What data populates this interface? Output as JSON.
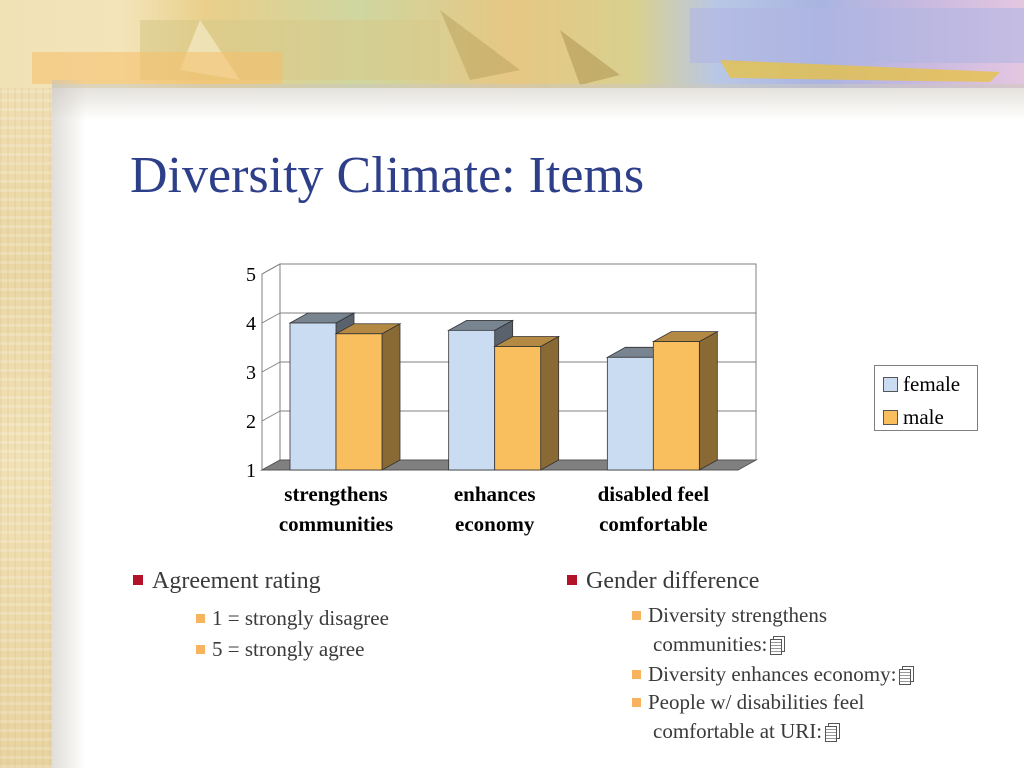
{
  "slide": {
    "title": "Diversity Climate: Items"
  },
  "chart_data": {
    "type": "bar",
    "categories": [
      "strengthens communities",
      "enhances economy",
      "disabled feel comfortable"
    ],
    "category_lines": [
      [
        "strengthens",
        "communities"
      ],
      [
        "enhances",
        "economy"
      ],
      [
        "disabled feel",
        "comfortable"
      ]
    ],
    "series": [
      {
        "name": "female",
        "values": [
          4.0,
          3.85,
          3.3
        ],
        "color": "#c9dcf2"
      },
      {
        "name": "male",
        "values": [
          3.78,
          3.52,
          3.62
        ],
        "color": "#f9be5e"
      }
    ],
    "yticks": [
      "1",
      "2",
      "3",
      "4",
      "5"
    ],
    "ylim": [
      1,
      5
    ],
    "grid": true,
    "legend_position": "right",
    "title": "",
    "xlabel": "",
    "ylabel": ""
  },
  "bullets": {
    "left": {
      "heading": "Agreement rating",
      "items": [
        "1 = strongly disagree",
        "5 = strongly agree"
      ]
    },
    "right": {
      "heading": "Gender difference",
      "item1_line1": "Diversity strengthens",
      "item1_line2": "communities:",
      "item2": "Diversity enhances economy:",
      "item3_line1": "People w/ disabilities feel",
      "item3_line2": "comfortable at URI:"
    },
    "icon": "document-icon",
    "colors": {
      "main_bullet": "#b3122b",
      "sub_bullet": "#f7b35e",
      "title": "#2e3f8a"
    }
  }
}
